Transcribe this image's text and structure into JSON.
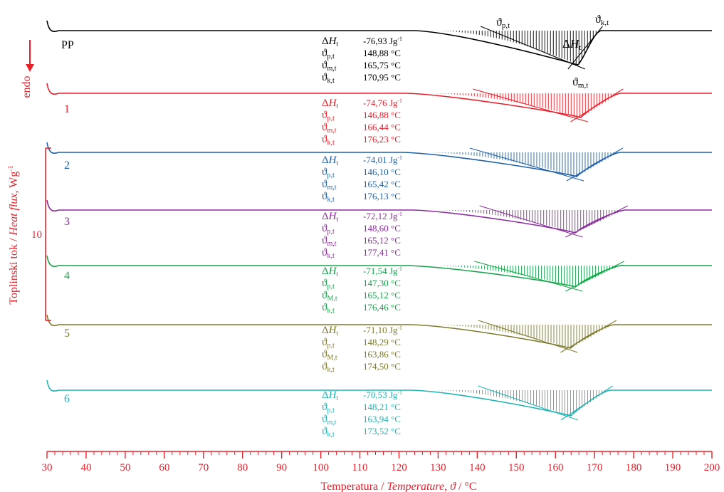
{
  "chart_data": {
    "type": "line",
    "title": "",
    "xlabel_parts": [
      "Temperatura / ",
      "Temperature",
      ", ",
      "ϑ",
      " / °C"
    ],
    "ylabel_parts": [
      "Toplinski tok / ",
      "Heat flux",
      ", Wg",
      "-1"
    ],
    "endo_label": "endo",
    "scale_bar_label": "10",
    "x_range": [
      30,
      200
    ],
    "x_ticks": [
      30,
      40,
      50,
      60,
      70,
      80,
      90,
      100,
      110,
      120,
      130,
      140,
      150,
      160,
      170,
      180,
      190,
      200
    ],
    "annotation_symbols": {
      "dH": "ΔH",
      "dH_sub": "t",
      "theta": "ϑ",
      "p_sub": "p,t",
      "m_sub": "m,t",
      "M_sub": "M,t",
      "k_sub": "k,t"
    },
    "pp_curve_labels": {
      "onset": "ϑp,t",
      "end": "ϑk,t",
      "peak": "ϑm,t",
      "area": "ΔHt"
    },
    "series": [
      {
        "name": "PP",
        "color": "#000000",
        "melt_onset": 148.88,
        "melt_peak": 165.75,
        "melt_end": 170.95,
        "labels": {
          "dH": "-76,93 Jg",
          "p": "148,88 °C",
          "m": "165,75 °C",
          "k": "170,95 °C",
          "m_sym": "m,t"
        }
      },
      {
        "name": "1",
        "color": "#e8202a",
        "melt_onset": 146.88,
        "melt_peak": 166.44,
        "melt_end": 176.23,
        "labels": {
          "dH": "-74,76 Jg",
          "p": "146,88 °C",
          "m": "166,44 °C",
          "k": "176,23 °C",
          "m_sym": "m,t"
        }
      },
      {
        "name": "2",
        "color": "#1f5fa8",
        "melt_onset": 146.1,
        "melt_peak": 165.42,
        "melt_end": 176.13,
        "labels": {
          "dH": "-74,01 Jg",
          "p": "146,10 °C",
          "m": "165,42 °C",
          "k": "176,13 °C",
          "m_sym": "m,t"
        }
      },
      {
        "name": "3",
        "color": "#8b2d9e",
        "melt_onset": 148.6,
        "melt_peak": 165.12,
        "melt_end": 177.41,
        "labels": {
          "dH": "-72,12 Jg",
          "p": "148,60 °C",
          "m": "165,12 °C",
          "k": "177,41 °C",
          "m_sym": "m,t"
        }
      },
      {
        "name": "4",
        "color": "#17a34a",
        "melt_onset": 147.3,
        "melt_peak": 165.12,
        "melt_end": 176.46,
        "labels": {
          "dH": "-71,54 Jg",
          "p": "147,30 °C",
          "m": "165,12 °C",
          "k": "176,46 °C",
          "m_sym": "M,t"
        }
      },
      {
        "name": "5",
        "color": "#7d7a2c",
        "melt_onset": 148.29,
        "melt_peak": 163.86,
        "melt_end": 174.5,
        "labels": {
          "dH": "-71,10 Jg",
          "p": "148,29 °C",
          "m": "163,86 °C",
          "k": "174,50 °C",
          "m_sym": "M,t"
        }
      },
      {
        "name": "6",
        "color": "#1fb3b3",
        "melt_onset": 148.21,
        "melt_peak": 163.94,
        "melt_end": 173.52,
        "labels": {
          "dH": "-70,53 Jg",
          "p": "148,21 °C",
          "m": "163,94 °C",
          "k": "173,52 °C",
          "m_sym": "m,t"
        }
      }
    ],
    "units": {
      "jg_sup": "-1"
    },
    "axis_color": "#e8202a",
    "grid": false
  }
}
